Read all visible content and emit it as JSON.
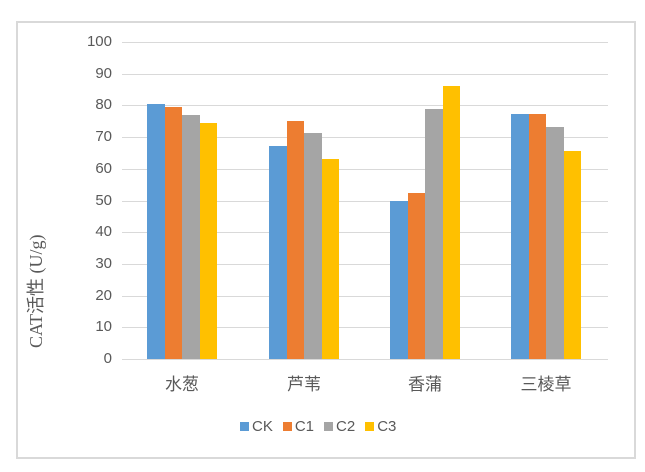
{
  "chart_data": {
    "type": "bar",
    "title": "",
    "xlabel": "",
    "ylabel": "CAT活性 (U/g)",
    "ylim": [
      0,
      100
    ],
    "yticks": [
      0,
      10,
      20,
      30,
      40,
      50,
      60,
      70,
      80,
      90,
      100
    ],
    "grid": true,
    "legend_position": "bottom",
    "categories": [
      "水葱",
      "芦苇",
      "香蒲",
      "三棱草"
    ],
    "series": [
      {
        "name": "CK",
        "color": "#5b9bd5",
        "values": [
          80.4,
          67.3,
          50.0,
          77.3
        ]
      },
      {
        "name": "C1",
        "color": "#ed7d31",
        "values": [
          79.6,
          75.0,
          52.5,
          77.3
        ]
      },
      {
        "name": "C2",
        "color": "#a5a5a5",
        "values": [
          77.0,
          71.3,
          78.8,
          73.2
        ]
      },
      {
        "name": "C3",
        "color": "#ffc000",
        "values": [
          74.5,
          63.2,
          86.1,
          65.7
        ]
      }
    ]
  }
}
